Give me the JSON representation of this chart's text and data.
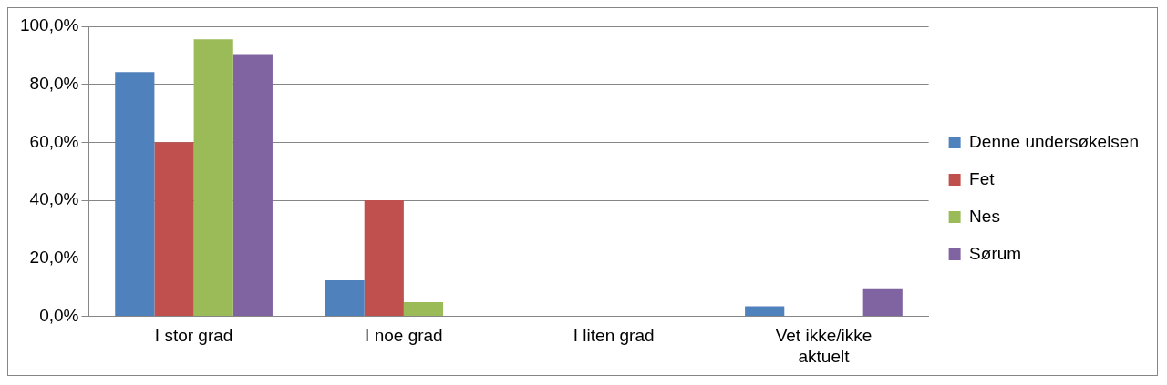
{
  "chart_data": {
    "type": "bar",
    "categories": [
      "I stor grad",
      "I noe grad",
      "I liten grad",
      "Vet ikke/ikke aktuelt"
    ],
    "series": [
      {
        "name": "Denne undersøkelsen",
        "color": "#4f81bd",
        "values": [
          84.2,
          12.4,
          0,
          3.4
        ]
      },
      {
        "name": "Fet",
        "color": "#c0504d",
        "values": [
          60,
          40,
          0,
          0
        ]
      },
      {
        "name": "Nes",
        "color": "#9bbb59",
        "values": [
          95.5,
          4.8,
          0,
          0
        ]
      },
      {
        "name": "Sørum",
        "color": "#8064a2",
        "values": [
          90.4,
          0,
          0,
          9.6
        ]
      }
    ],
    "ylim": [
      0,
      100
    ],
    "yticks": [
      {
        "value": 0,
        "label": "0,0%"
      },
      {
        "value": 20,
        "label": "20,0%"
      },
      {
        "value": 40,
        "label": "40,0%"
      },
      {
        "value": 60,
        "label": "60,0%"
      },
      {
        "value": 80,
        "label": "80,0%"
      },
      {
        "value": 100,
        "label": "100,0%"
      }
    ],
    "grid": "y",
    "legend": "right"
  }
}
